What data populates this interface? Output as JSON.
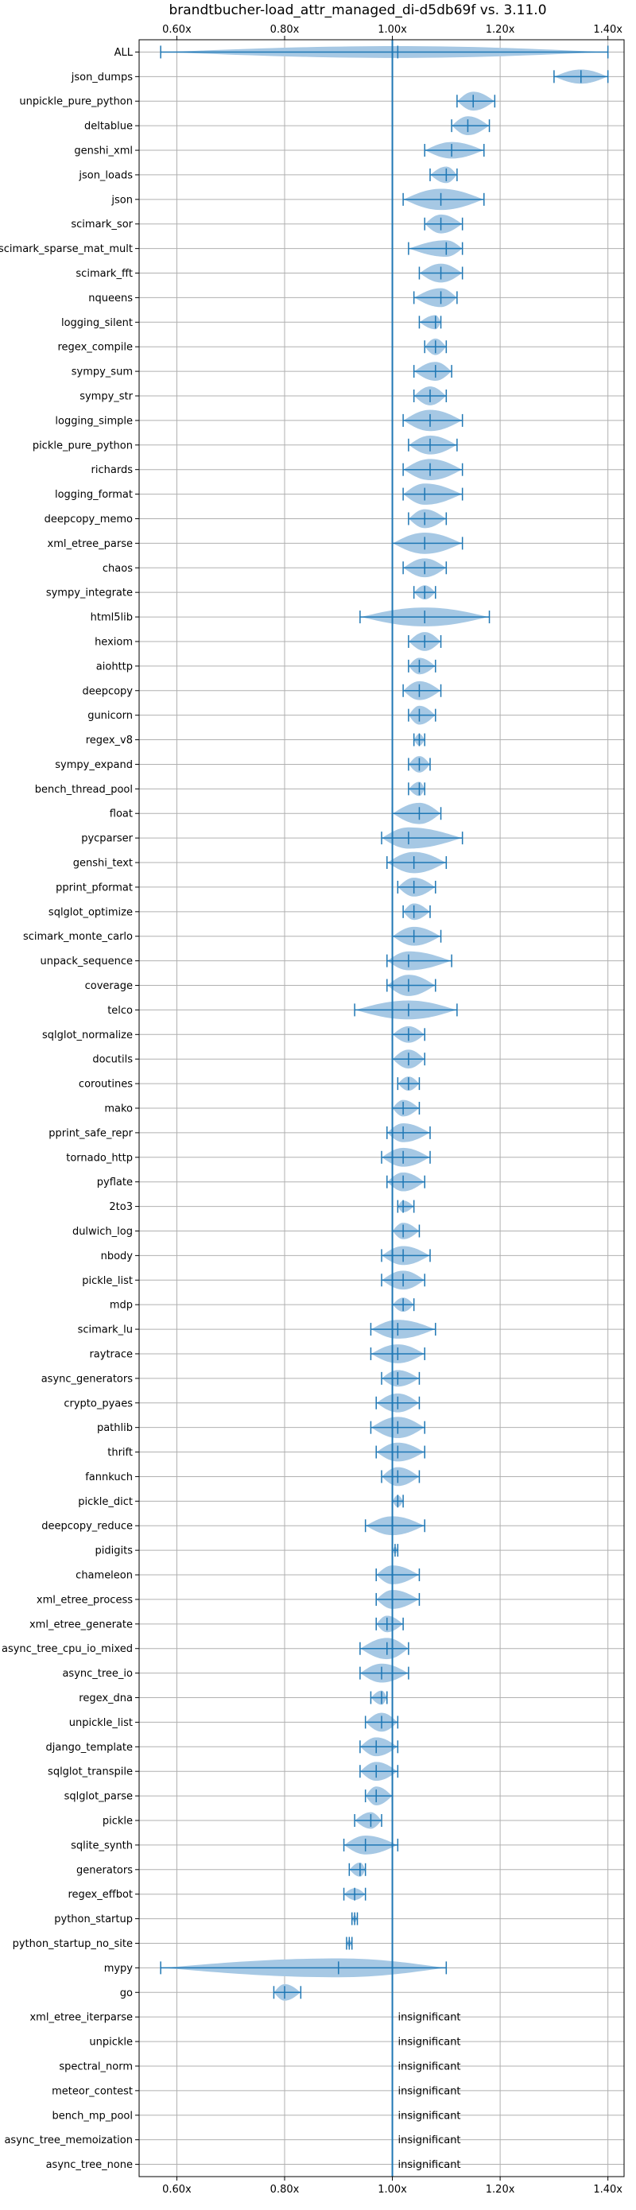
{
  "chart_data": {
    "type": "violin",
    "title": "brandtbucher-load_attr_managed_di-d5db69f vs. 3.11.0",
    "xlabel": "",
    "ylabel": "",
    "xlim": [
      0.53,
      1.43
    ],
    "x_ticks": [
      0.6,
      0.8,
      1.0,
      1.2,
      1.4
    ],
    "x_tick_labels": [
      "0.60x",
      "0.80x",
      "1.00x",
      "1.20x",
      "1.40x"
    ],
    "x_tick_positions": [
      "top",
      "bottom"
    ],
    "reference_line": 1.0,
    "grid": true,
    "colors": {
      "violin_fill": "#a6c8e4",
      "line": "#1f77b4",
      "grid": "#b0b0b0"
    },
    "rows": [
      {
        "label": "ALL",
        "min": 0.57,
        "max": 1.4,
        "median": 1.01,
        "width": 0.5
      },
      {
        "label": "json_dumps",
        "min": 1.3,
        "max": 1.4,
        "median": 1.35,
        "width": 0.6
      },
      {
        "label": "unpickle_pure_python",
        "min": 1.12,
        "max": 1.19,
        "median": 1.15,
        "width": 0.8
      },
      {
        "label": "deltablue",
        "min": 1.11,
        "max": 1.18,
        "median": 1.14,
        "width": 0.8
      },
      {
        "label": "genshi_xml",
        "min": 1.06,
        "max": 1.17,
        "median": 1.11,
        "width": 0.7
      },
      {
        "label": "json_loads",
        "min": 1.07,
        "max": 1.12,
        "median": 1.1,
        "width": 0.7
      },
      {
        "label": "json",
        "min": 1.02,
        "max": 1.17,
        "median": 1.09,
        "width": 0.9
      },
      {
        "label": "scimark_sor",
        "min": 1.06,
        "max": 1.13,
        "median": 1.09,
        "width": 0.8
      },
      {
        "label": "scimark_sparse_mat_mult",
        "min": 1.03,
        "max": 1.13,
        "median": 1.1,
        "width": 0.7
      },
      {
        "label": "scimark_fft",
        "min": 1.05,
        "max": 1.13,
        "median": 1.09,
        "width": 0.8
      },
      {
        "label": "nqueens",
        "min": 1.04,
        "max": 1.12,
        "median": 1.09,
        "width": 0.8
      },
      {
        "label": "logging_silent",
        "min": 1.05,
        "max": 1.09,
        "median": 1.08,
        "width": 0.6
      },
      {
        "label": "regex_compile",
        "min": 1.06,
        "max": 1.1,
        "median": 1.08,
        "width": 0.7
      },
      {
        "label": "sympy_sum",
        "min": 1.04,
        "max": 1.11,
        "median": 1.08,
        "width": 0.8
      },
      {
        "label": "sympy_str",
        "min": 1.04,
        "max": 1.1,
        "median": 1.07,
        "width": 0.8
      },
      {
        "label": "logging_simple",
        "min": 1.02,
        "max": 1.13,
        "median": 1.07,
        "width": 0.9
      },
      {
        "label": "pickle_pure_python",
        "min": 1.03,
        "max": 1.12,
        "median": 1.07,
        "width": 0.8
      },
      {
        "label": "richards",
        "min": 1.02,
        "max": 1.13,
        "median": 1.07,
        "width": 0.9
      },
      {
        "label": "logging_format",
        "min": 1.02,
        "max": 1.13,
        "median": 1.06,
        "width": 0.9
      },
      {
        "label": "deepcopy_memo",
        "min": 1.03,
        "max": 1.1,
        "median": 1.06,
        "width": 0.8
      },
      {
        "label": "xml_etree_parse",
        "min": 1.0,
        "max": 1.13,
        "median": 1.06,
        "width": 0.9
      },
      {
        "label": "chaos",
        "min": 1.02,
        "max": 1.1,
        "median": 1.06,
        "width": 0.8
      },
      {
        "label": "sympy_integrate",
        "min": 1.04,
        "max": 1.08,
        "median": 1.06,
        "width": 0.6
      },
      {
        "label": "html5lib",
        "min": 0.94,
        "max": 1.18,
        "median": 1.06,
        "width": 0.8
      },
      {
        "label": "hexiom",
        "min": 1.03,
        "max": 1.09,
        "median": 1.06,
        "width": 0.8
      },
      {
        "label": "aiohttp",
        "min": 1.03,
        "max": 1.08,
        "median": 1.05,
        "width": 0.7
      },
      {
        "label": "deepcopy",
        "min": 1.02,
        "max": 1.09,
        "median": 1.05,
        "width": 0.8
      },
      {
        "label": "gunicorn",
        "min": 1.03,
        "max": 1.08,
        "median": 1.05,
        "width": 0.8
      },
      {
        "label": "regex_v8",
        "min": 1.04,
        "max": 1.06,
        "median": 1.05,
        "width": 0.5
      },
      {
        "label": "sympy_expand",
        "min": 1.03,
        "max": 1.07,
        "median": 1.05,
        "width": 0.7
      },
      {
        "label": "bench_thread_pool",
        "min": 1.03,
        "max": 1.06,
        "median": 1.05,
        "width": 0.6
      },
      {
        "label": "float",
        "min": 1.0,
        "max": 1.09,
        "median": 1.05,
        "width": 0.9
      },
      {
        "label": "pycparser",
        "min": 0.98,
        "max": 1.13,
        "median": 1.03,
        "width": 0.9
      },
      {
        "label": "genshi_text",
        "min": 0.99,
        "max": 1.1,
        "median": 1.04,
        "width": 0.9
      },
      {
        "label": "pprint_pformat",
        "min": 1.01,
        "max": 1.08,
        "median": 1.04,
        "width": 0.8
      },
      {
        "label": "sqlglot_optimize",
        "min": 1.02,
        "max": 1.07,
        "median": 1.04,
        "width": 0.7
      },
      {
        "label": "scimark_monte_carlo",
        "min": 1.0,
        "max": 1.09,
        "median": 1.04,
        "width": 0.8
      },
      {
        "label": "unpack_sequence",
        "min": 0.99,
        "max": 1.11,
        "median": 1.03,
        "width": 0.8
      },
      {
        "label": "coverage",
        "min": 0.99,
        "max": 1.08,
        "median": 1.03,
        "width": 0.9
      },
      {
        "label": "telco",
        "min": 0.93,
        "max": 1.12,
        "median": 1.03,
        "width": 0.8
      },
      {
        "label": "sqlglot_normalize",
        "min": 1.0,
        "max": 1.06,
        "median": 1.03,
        "width": 0.7
      },
      {
        "label": "docutils",
        "min": 1.0,
        "max": 1.06,
        "median": 1.03,
        "width": 0.8
      },
      {
        "label": "coroutines",
        "min": 1.01,
        "max": 1.05,
        "median": 1.03,
        "width": 0.6
      },
      {
        "label": "mako",
        "min": 1.0,
        "max": 1.05,
        "median": 1.02,
        "width": 0.7
      },
      {
        "label": "pprint_safe_repr",
        "min": 0.99,
        "max": 1.07,
        "median": 1.02,
        "width": 0.8
      },
      {
        "label": "tornado_http",
        "min": 0.98,
        "max": 1.07,
        "median": 1.02,
        "width": 0.8
      },
      {
        "label": "pyflate",
        "min": 0.99,
        "max": 1.06,
        "median": 1.02,
        "width": 0.8
      },
      {
        "label": "2to3",
        "min": 1.01,
        "max": 1.04,
        "median": 1.02,
        "width": 0.5
      },
      {
        "label": "dulwich_log",
        "min": 1.0,
        "max": 1.05,
        "median": 1.02,
        "width": 0.7
      },
      {
        "label": "nbody",
        "min": 0.98,
        "max": 1.07,
        "median": 1.02,
        "width": 0.8
      },
      {
        "label": "pickle_list",
        "min": 0.98,
        "max": 1.06,
        "median": 1.02,
        "width": 0.8
      },
      {
        "label": "mdp",
        "min": 1.0,
        "max": 1.04,
        "median": 1.02,
        "width": 0.6
      },
      {
        "label": "scimark_lu",
        "min": 0.96,
        "max": 1.08,
        "median": 1.01,
        "width": 0.8
      },
      {
        "label": "raytrace",
        "min": 0.96,
        "max": 1.06,
        "median": 1.01,
        "width": 0.8
      },
      {
        "label": "async_generators",
        "min": 0.98,
        "max": 1.05,
        "median": 1.01,
        "width": 0.7
      },
      {
        "label": "crypto_pyaes",
        "min": 0.97,
        "max": 1.05,
        "median": 1.01,
        "width": 0.8
      },
      {
        "label": "pathlib",
        "min": 0.96,
        "max": 1.06,
        "median": 1.01,
        "width": 0.9
      },
      {
        "label": "thrift",
        "min": 0.97,
        "max": 1.06,
        "median": 1.01,
        "width": 0.8
      },
      {
        "label": "fannkuch",
        "min": 0.98,
        "max": 1.05,
        "median": 1.01,
        "width": 0.8
      },
      {
        "label": "pickle_dict",
        "min": 1.0,
        "max": 1.02,
        "median": 1.01,
        "width": 0.5
      },
      {
        "label": "deepcopy_reduce",
        "min": 0.95,
        "max": 1.06,
        "median": 1.0,
        "width": 0.8
      },
      {
        "label": "pidigits",
        "min": 1.0,
        "max": 1.01,
        "median": 1.005,
        "width": 0.3
      },
      {
        "label": "chameleon",
        "min": 0.97,
        "max": 1.05,
        "median": 1.0,
        "width": 0.8
      },
      {
        "label": "xml_etree_process",
        "min": 0.97,
        "max": 1.05,
        "median": 1.0,
        "width": 0.8
      },
      {
        "label": "xml_etree_generate",
        "min": 0.97,
        "max": 1.02,
        "median": 0.99,
        "width": 0.7
      },
      {
        "label": "async_tree_cpu_io_mixed",
        "min": 0.94,
        "max": 1.03,
        "median": 0.99,
        "width": 0.9
      },
      {
        "label": "async_tree_io",
        "min": 0.94,
        "max": 1.03,
        "median": 0.98,
        "width": 0.8
      },
      {
        "label": "regex_dna",
        "min": 0.96,
        "max": 0.99,
        "median": 0.98,
        "width": 0.6
      },
      {
        "label": "unpickle_list",
        "min": 0.95,
        "max": 1.01,
        "median": 0.98,
        "width": 0.8
      },
      {
        "label": "django_template",
        "min": 0.94,
        "max": 1.01,
        "median": 0.97,
        "width": 0.8
      },
      {
        "label": "sqlglot_transpile",
        "min": 0.94,
        "max": 1.01,
        "median": 0.97,
        "width": 0.8
      },
      {
        "label": "sqlglot_parse",
        "min": 0.95,
        "max": 1.0,
        "median": 0.97,
        "width": 0.8
      },
      {
        "label": "pickle",
        "min": 0.93,
        "max": 0.98,
        "median": 0.96,
        "width": 0.7
      },
      {
        "label": "sqlite_synth",
        "min": 0.91,
        "max": 1.01,
        "median": 0.95,
        "width": 0.8
      },
      {
        "label": "generators",
        "min": 0.92,
        "max": 0.95,
        "median": 0.94,
        "width": 0.6
      },
      {
        "label": "regex_effbot",
        "min": 0.91,
        "max": 0.95,
        "median": 0.93,
        "width": 0.5
      },
      {
        "label": "python_startup",
        "min": 0.925,
        "max": 0.935,
        "median": 0.93,
        "width": 0.3
      },
      {
        "label": "python_startup_no_site",
        "min": 0.915,
        "max": 0.925,
        "median": 0.92,
        "width": 0.3
      },
      {
        "label": "mypy",
        "min": 0.57,
        "max": 1.1,
        "median": 0.9,
        "width": 0.8
      },
      {
        "label": "go",
        "min": 0.78,
        "max": 0.83,
        "median": 0.8,
        "width": 0.7
      },
      {
        "label": "xml_etree_iterparse",
        "annotation": "insignificant"
      },
      {
        "label": "unpickle",
        "annotation": "insignificant"
      },
      {
        "label": "spectral_norm",
        "annotation": "insignificant"
      },
      {
        "label": "meteor_contest",
        "annotation": "insignificant"
      },
      {
        "label": "bench_mp_pool",
        "annotation": "insignificant"
      },
      {
        "label": "async_tree_memoization",
        "annotation": "insignificant"
      },
      {
        "label": "async_tree_none",
        "annotation": "insignificant"
      }
    ]
  }
}
